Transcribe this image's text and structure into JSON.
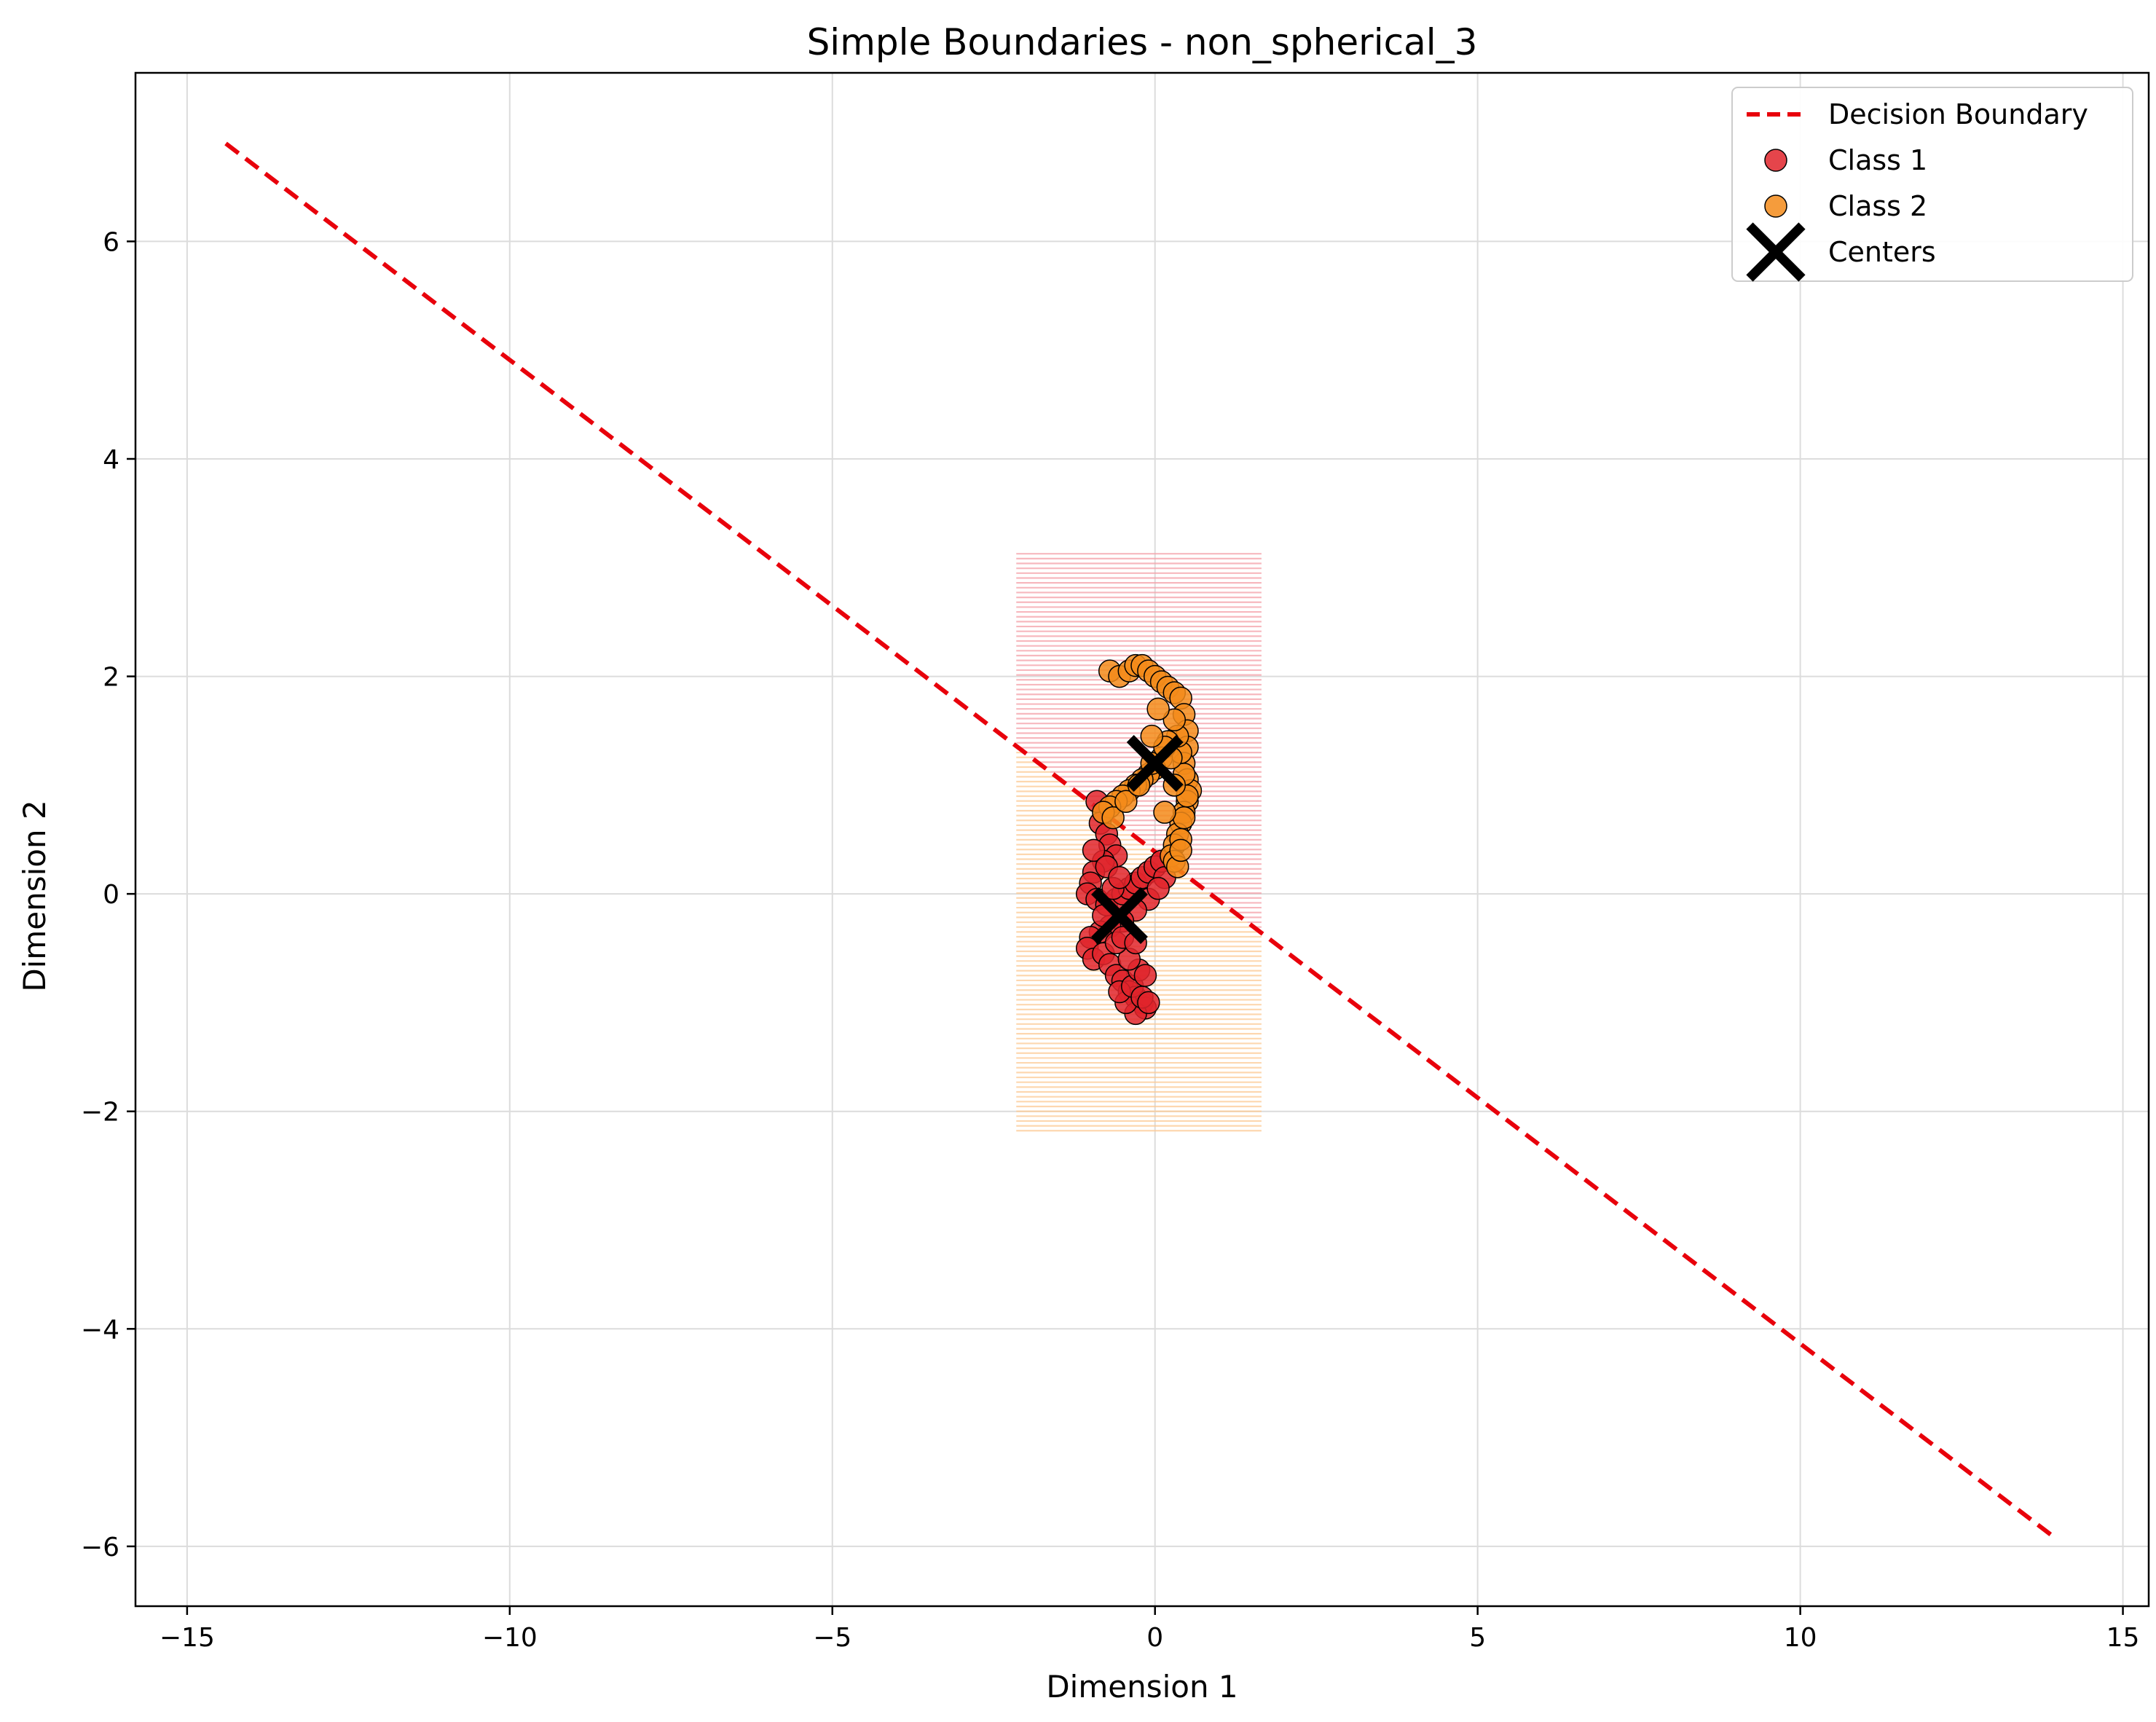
{
  "chart_data": {
    "type": "scatter",
    "title": "Simple Boundaries - non_spherical_3",
    "xlabel": "Dimension 1",
    "ylabel": "Dimension 2",
    "xlim": [
      -15.8,
      15.4
    ],
    "ylim": [
      -6.55,
      7.55
    ],
    "xticks": [
      -15,
      -10,
      -5,
      0,
      5,
      10,
      15
    ],
    "yticks": [
      -6,
      -4,
      -2,
      0,
      2,
      4,
      6
    ],
    "xtick_labels": [
      "−15",
      "−10",
      "−5",
      "0",
      "5",
      "10",
      "15"
    ],
    "ytick_labels": [
      "−6",
      "−4",
      "−2",
      "0",
      "2",
      "4",
      "6"
    ],
    "grid": true,
    "legend_position": "top-right",
    "decision_boundary": {
      "name": "Decision Boundary",
      "color": "#e8000b",
      "x": [
        -14.4,
        13.9
      ],
      "y": [
        6.9,
        -5.9
      ]
    },
    "regions": {
      "x_range": [
        -2.15,
        1.65
      ],
      "y_range": [
        -2.2,
        3.15
      ],
      "upper_color": "#f4a0a8",
      "lower_color": "#fcc994"
    },
    "series": [
      {
        "name": "Class 1",
        "color": "#e0242b",
        "x": [
          -0.9,
          -0.85,
          -0.75,
          -0.7,
          -0.6,
          -0.8,
          -0.95,
          -1.0,
          -1.05,
          -0.9,
          -0.75,
          -0.6,
          -0.5,
          -0.4,
          -0.3,
          -0.2,
          -0.1,
          0.0,
          0.1,
          0.15,
          -0.1,
          -0.3,
          -0.5,
          -0.7,
          -0.85,
          -1.0,
          -1.05,
          -0.95,
          -0.8,
          -0.7,
          -0.6,
          -0.5,
          -0.4,
          -0.3,
          -0.2,
          -0.15,
          -0.3,
          -0.45,
          -0.55,
          -0.35,
          -0.2,
          -0.1,
          -0.25,
          -0.4,
          -0.6,
          -0.8,
          -0.65,
          -0.5,
          -0.95,
          -0.75,
          -0.3,
          0.05,
          -0.15,
          -0.55
        ],
        "y": [
          0.85,
          0.65,
          0.55,
          0.45,
          0.35,
          0.3,
          0.2,
          0.1,
          0.0,
          -0.05,
          -0.1,
          -0.05,
          0.0,
          0.05,
          0.1,
          0.15,
          0.2,
          0.25,
          0.3,
          0.15,
          -0.05,
          -0.15,
          -0.25,
          -0.3,
          -0.35,
          -0.4,
          -0.5,
          -0.6,
          -0.55,
          -0.65,
          -0.75,
          -0.8,
          -0.9,
          -0.95,
          -1.0,
          -1.05,
          -1.1,
          -1.0,
          -0.9,
          -0.85,
          -0.95,
          -1.0,
          -0.7,
          -0.6,
          -0.45,
          -0.2,
          0.05,
          -0.4,
          0.4,
          0.25,
          -0.45,
          0.05,
          -0.75,
          0.15
        ]
      },
      {
        "name": "Class 2",
        "color": "#f38b1a",
        "x": [
          -0.7,
          -0.55,
          -0.4,
          -0.3,
          -0.2,
          -0.1,
          0.0,
          0.1,
          0.2,
          0.3,
          0.4,
          0.45,
          0.5,
          0.5,
          0.45,
          0.5,
          0.55,
          0.5,
          0.45,
          0.4,
          0.35,
          0.3,
          0.25,
          0.3,
          0.35,
          0.4,
          0.45,
          0.5,
          0.45,
          0.4,
          0.35,
          0.3,
          0.2,
          0.1,
          0.0,
          -0.1,
          -0.2,
          -0.3,
          -0.4,
          -0.5,
          -0.6,
          -0.7,
          -0.8,
          -0.65,
          -0.45,
          -0.25,
          -0.05,
          0.15,
          0.3,
          0.15,
          -0.05,
          0.05,
          0.25,
          0.4
        ],
        "y": [
          2.05,
          2.0,
          2.05,
          2.1,
          2.1,
          2.05,
          2.0,
          1.95,
          1.9,
          1.85,
          1.8,
          1.65,
          1.5,
          1.35,
          1.2,
          1.05,
          0.95,
          0.85,
          0.75,
          0.65,
          0.55,
          0.45,
          0.35,
          0.3,
          0.25,
          0.5,
          0.7,
          0.9,
          1.1,
          1.3,
          1.45,
          1.6,
          1.4,
          1.25,
          1.15,
          1.1,
          1.05,
          1.0,
          0.95,
          0.9,
          0.85,
          0.8,
          0.75,
          0.7,
          0.85,
          1.0,
          1.2,
          1.35,
          1.0,
          0.75,
          1.45,
          1.7,
          1.25,
          0.4
        ]
      }
    ],
    "centers": {
      "name": "Centers",
      "color": "#000000",
      "x": [
        -0.55,
        0.0
      ],
      "y": [
        -0.2,
        1.2
      ]
    }
  }
}
